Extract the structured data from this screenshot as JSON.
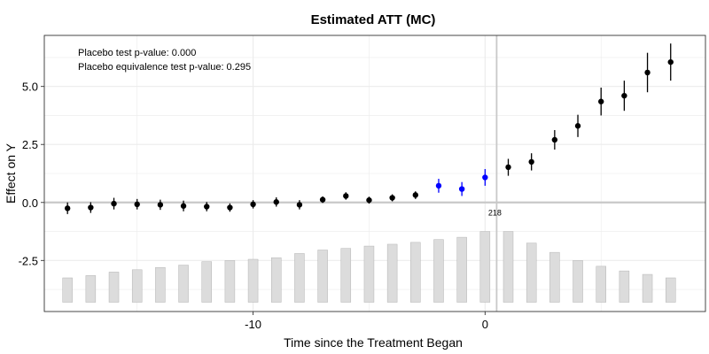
{
  "chart_data": {
    "type": "scatter",
    "title": "Estimated ATT (MC)",
    "xlabel": "Time since the Treatment Began",
    "ylabel": "Effect on Y",
    "xlim": [
      -19,
      9.5
    ],
    "ylim": [
      -4.7,
      7.2
    ],
    "x_ticks": [
      -10,
      0
    ],
    "x_tick_labels": [
      "-10",
      "0"
    ],
    "y_ticks": [
      -2.5,
      0,
      2.5,
      5
    ],
    "y_tick_labels": [
      "-2.5",
      "0.0",
      "2.5",
      "5.0"
    ],
    "x_minor_gridlines": [
      -15,
      -5,
      5
    ],
    "y_minor_gridlines": [
      -3.75,
      -1.25,
      1.25,
      3.75,
      6.25
    ],
    "grid": true,
    "zero_line": 0,
    "vline": 0.5,
    "annotations": [
      "Placebo test p-value: 0.000",
      "Placebo equivalence test p-value: 0.295"
    ],
    "count_label": {
      "text": "218",
      "x": 0.5,
      "y": -0.45
    },
    "colors": {
      "point": "#000000",
      "placebo": "#0000ff",
      "bar": "#dcdcdc",
      "bar_stroke": "#b4b4b4",
      "zero_line": "#c8c8c8",
      "vline": "#c8c8c8",
      "grid": "#ebebeb"
    },
    "points": [
      {
        "x": -18,
        "y": -0.25,
        "lo": -0.5,
        "hi": 0.0,
        "placebo": false
      },
      {
        "x": -17,
        "y": -0.22,
        "lo": -0.45,
        "hi": 0.01,
        "placebo": false
      },
      {
        "x": -16,
        "y": -0.05,
        "lo": -0.3,
        "hi": 0.2,
        "placebo": false
      },
      {
        "x": -15,
        "y": -0.08,
        "lo": -0.3,
        "hi": 0.15,
        "placebo": false
      },
      {
        "x": -14,
        "y": -0.1,
        "lo": -0.32,
        "hi": 0.12,
        "placebo": false
      },
      {
        "x": -13,
        "y": -0.15,
        "lo": -0.38,
        "hi": 0.08,
        "placebo": false
      },
      {
        "x": -12,
        "y": -0.18,
        "lo": -0.38,
        "hi": 0.02,
        "placebo": false
      },
      {
        "x": -11,
        "y": -0.22,
        "lo": -0.4,
        "hi": -0.04,
        "placebo": false
      },
      {
        "x": -10,
        "y": -0.08,
        "lo": -0.26,
        "hi": 0.1,
        "placebo": false
      },
      {
        "x": -9,
        "y": 0.02,
        "lo": -0.18,
        "hi": 0.22,
        "placebo": false
      },
      {
        "x": -8,
        "y": -0.1,
        "lo": -0.3,
        "hi": 0.1,
        "placebo": false
      },
      {
        "x": -7,
        "y": 0.12,
        "lo": -0.02,
        "hi": 0.26,
        "placebo": false
      },
      {
        "x": -6,
        "y": 0.28,
        "lo": 0.12,
        "hi": 0.44,
        "placebo": false
      },
      {
        "x": -5,
        "y": 0.1,
        "lo": -0.05,
        "hi": 0.25,
        "placebo": false
      },
      {
        "x": -4,
        "y": 0.2,
        "lo": 0.05,
        "hi": 0.35,
        "placebo": false
      },
      {
        "x": -3,
        "y": 0.32,
        "lo": 0.15,
        "hi": 0.48,
        "placebo": false
      },
      {
        "x": -2,
        "y": 0.72,
        "lo": 0.42,
        "hi": 1.02,
        "placebo": true
      },
      {
        "x": -1,
        "y": 0.58,
        "lo": 0.28,
        "hi": 0.88,
        "placebo": true
      },
      {
        "x": 0,
        "y": 1.08,
        "lo": 0.72,
        "hi": 1.44,
        "placebo": true
      },
      {
        "x": 1,
        "y": 1.52,
        "lo": 1.15,
        "hi": 1.88,
        "placebo": false
      },
      {
        "x": 2,
        "y": 1.75,
        "lo": 1.38,
        "hi": 2.12,
        "placebo": false
      },
      {
        "x": 3,
        "y": 2.7,
        "lo": 2.28,
        "hi": 3.12,
        "placebo": false
      },
      {
        "x": 4,
        "y": 3.3,
        "lo": 2.82,
        "hi": 3.78,
        "placebo": false
      },
      {
        "x": 5,
        "y": 4.35,
        "lo": 3.75,
        "hi": 4.95,
        "placebo": false
      },
      {
        "x": 6,
        "y": 4.6,
        "lo": 3.95,
        "hi": 5.25,
        "placebo": false
      },
      {
        "x": 7,
        "y": 5.6,
        "lo": 4.75,
        "hi": 6.45,
        "placebo": false
      },
      {
        "x": 8,
        "y": 6.05,
        "lo": 5.25,
        "hi": 6.85,
        "placebo": false
      }
    ],
    "count_bars": {
      "base": -4.3,
      "width": 0.42,
      "bars": [
        {
          "x": -18,
          "top": -3.25
        },
        {
          "x": -17,
          "top": -3.15
        },
        {
          "x": -16,
          "top": -3.0
        },
        {
          "x": -15,
          "top": -2.9
        },
        {
          "x": -14,
          "top": -2.8
        },
        {
          "x": -13,
          "top": -2.7
        },
        {
          "x": -12,
          "top": -2.55
        },
        {
          "x": -11,
          "top": -2.5
        },
        {
          "x": -10,
          "top": -2.45
        },
        {
          "x": -9,
          "top": -2.38
        },
        {
          "x": -8,
          "top": -2.2
        },
        {
          "x": -7,
          "top": -2.05
        },
        {
          "x": -6,
          "top": -1.98
        },
        {
          "x": -5,
          "top": -1.88
        },
        {
          "x": -4,
          "top": -1.8
        },
        {
          "x": -3,
          "top": -1.72
        },
        {
          "x": -2,
          "top": -1.6
        },
        {
          "x": -1,
          "top": -1.5
        },
        {
          "x": 0,
          "top": -1.25
        },
        {
          "x": 1,
          "top": -1.25
        },
        {
          "x": 2,
          "top": -1.75
        },
        {
          "x": 3,
          "top": -2.15
        },
        {
          "x": 4,
          "top": -2.5
        },
        {
          "x": 5,
          "top": -2.75
        },
        {
          "x": 6,
          "top": -2.95
        },
        {
          "x": 7,
          "top": -3.1
        },
        {
          "x": 8,
          "top": -3.25
        }
      ]
    }
  }
}
